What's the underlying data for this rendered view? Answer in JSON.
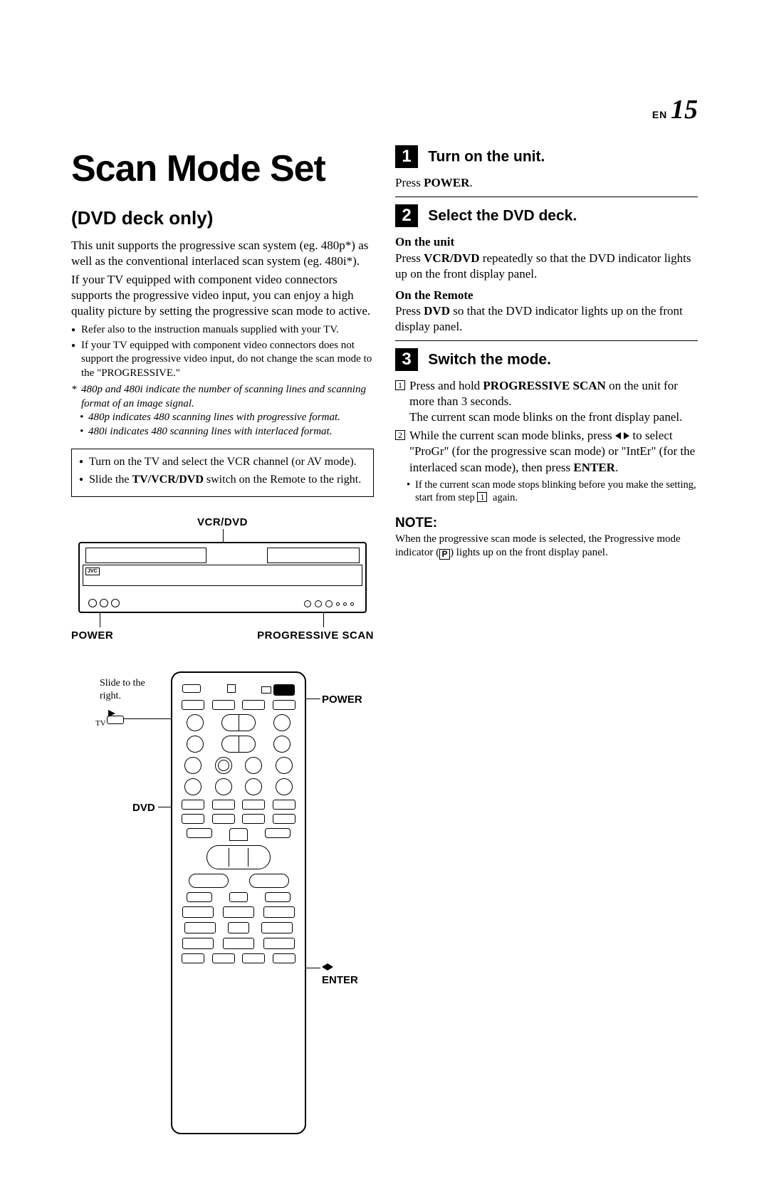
{
  "pagenum": {
    "prefix": "EN",
    "num": "15"
  },
  "title": "Scan Mode Set",
  "subtitle": "(DVD deck only)",
  "intro": [
    "This unit supports the progressive scan system (eg. 480p*) as well as the conventional interlaced scan system (eg. 480i*).",
    "If your TV equipped with component video connectors supports the progressive video input, you can enjoy a high quality picture by setting the progressive scan mode to active."
  ],
  "bullets": [
    "Refer also to the instruction manuals supplied with your TV.",
    "If your TV equipped with component video connectors does not support the progressive video input, do not change the scan mode to the \"PROGRESSIVE.\""
  ],
  "footnote_main": "480p and 480i indicate the number of scanning lines and scanning format of an image signal.",
  "footnotes_sub": [
    "480p indicates 480 scanning lines with progressive format.",
    "480i indicates 480 scanning lines with interlaced format."
  ],
  "prebox": [
    "Turn on the TV and select the VCR channel (or AV mode).",
    "Slide the <b class=\"sans\">TV/VCR/DVD</b> switch on the Remote to the right."
  ],
  "diagram": {
    "top_label": "VCR/DVD",
    "bottom_left": "POWER",
    "bottom_right": "PROGRESSIVE SCAN",
    "brand": "JVC"
  },
  "remote": {
    "slide_text": "Slide to the right.",
    "tv_label": "TV",
    "dvd_label": "DVD",
    "power_label": "POWER",
    "enter_label": "ENTER"
  },
  "steps": [
    {
      "n": "1",
      "title": "Turn on the unit.",
      "lines": [
        "Press <b class=\"sans\">POWER</b>."
      ]
    },
    {
      "n": "2",
      "title": "Select the DVD deck.",
      "blocks": [
        {
          "sub": "On the unit",
          "text": "Press <b class=\"sans\">VCR/DVD</b> repeatedly so that the DVD indicator lights up on the front display panel."
        },
        {
          "sub": "On the Remote",
          "text": "Press <b class=\"sans\">DVD</b> so that the DVD indicator lights up on the front display panel."
        }
      ]
    },
    {
      "n": "3",
      "title": "Switch the mode.",
      "numbered": [
        {
          "n": "1",
          "text": "Press and hold <b class=\"sans\">PROGRESSIVE SCAN</b> on the unit for more than 3 seconds.",
          "cont": "The current scan mode blinks on the front display panel."
        },
        {
          "n": "2",
          "text": "While the current scan mode blinks, press <span class=\"tri-l\"></span> <span class=\"tri-r\"></span> to select \"ProGr\" (for the progressive scan mode) or \"IntEr\" (for the interlaced scan mode), then press <b class=\"sans\">ENTER</b>.",
          "note": "If the current scan mode stops blinking before you make the setting, start from step <span class=\"boxnum\">1</span> again."
        }
      ]
    }
  ],
  "note": {
    "heading": "NOTE:",
    "text": "When the progressive scan mode is selected, the Progressive mode indicator (<span class=\"p-icon\">P</span>) lights up on the front display panel."
  }
}
